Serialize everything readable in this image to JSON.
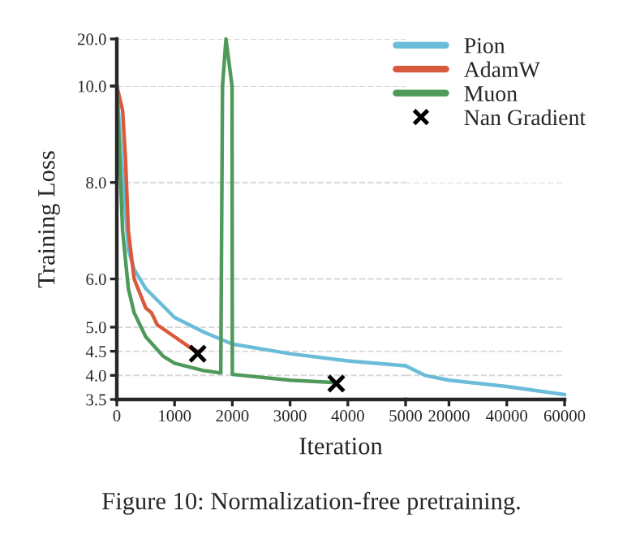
{
  "chart_data": [
    {
      "type": "line",
      "ylabel": "Training Loss",
      "annotations": [
        "Figure 10: Normalization-free pretraining."
      ],
      "xlim": [
        0,
        5000
      ],
      "ylim": [
        10,
        20
      ],
      "yticks": [
        {
          "value": 10,
          "label": "10.0"
        },
        {
          "value": 20,
          "label": "20.0"
        }
      ],
      "tick_labels": "y",
      "grid": "y",
      "series": [
        {
          "color": "#4f9a5a",
          "x": [
            1830,
            1890,
            1995
          ],
          "values": [
            10,
            20,
            10
          ]
        }
      ]
    },
    {
      "type": "line",
      "xlabel": "Iteration",
      "xlim": [
        0,
        5000
      ],
      "xticks": [
        0,
        1000,
        2000,
        3000,
        4000,
        5000
      ],
      "ylim": [
        3.5,
        10
      ],
      "yticks": [
        3.5,
        {
          "value": 4,
          "label": "4.0"
        },
        4.5,
        {
          "value": 5,
          "label": "5.0"
        },
        {
          "value": 6,
          "label": "6.0"
        },
        {
          "value": 8,
          "label": "8.0"
        },
        {
          "value": 10,
          "label": null
        }
      ],
      "grid": "y",
      "legend": "top right",
      "series": [
        {
          "name": "Pion",
          "color": "#6bbcd9",
          "x": [
            0,
            100,
            200,
            300,
            500,
            1000,
            1500,
            2000,
            3000,
            4000,
            5000
          ],
          "values": [
            10,
            8.2,
            6.6,
            6.2,
            5.8,
            5.2,
            4.9,
            4.65,
            4.45,
            4.3,
            4.2
          ]
        },
        {
          "name": "AdamW",
          "color": "#d9593d",
          "x": [
            0,
            100,
            150,
            200,
            300,
            500,
            600,
            700,
            1000,
            1300,
            1400
          ],
          "values": [
            10,
            9.5,
            8.5,
            7,
            6,
            5.4,
            5.3,
            5.05,
            4.8,
            4.55,
            4.5
          ]
        },
        {
          "name": "Muon",
          "color": "#4f9a5a",
          "x": [
            0,
            50,
            100,
            200,
            300,
            500,
            800,
            1000,
            1500,
            1800,
            1830,
            1900,
            1995,
            2000,
            3000,
            3800
          ],
          "values": [
            10,
            8.5,
            7,
            5.8,
            5.3,
            4.8,
            4.4,
            4.25,
            4.1,
            4.05,
            10,
            null,
            10,
            4.02,
            3.9,
            3.85
          ]
        },
        {
          "name": "Nan Gradient",
          "type": "scatter",
          "marker": "cross",
          "color": "#000000",
          "x": [
            1400,
            3800
          ],
          "values": [
            4.45,
            3.83
          ]
        }
      ]
    },
    {
      "type": "line",
      "xlim": [
        5000,
        60000
      ],
      "xticks": [
        20000,
        40000,
        60000
      ],
      "ylim": [
        3.5,
        8
      ],
      "yticks": [
        3.5,
        4,
        4.5,
        5,
        6,
        8
      ],
      "tick_labels": "x",
      "grid": "y",
      "series": [
        {
          "color": "#6bbcd9",
          "x": [
            5000,
            11700,
            20000,
            40000,
            60000
          ],
          "values": [
            4.2,
            4.0,
            3.9,
            3.77,
            3.6
          ]
        }
      ]
    }
  ]
}
